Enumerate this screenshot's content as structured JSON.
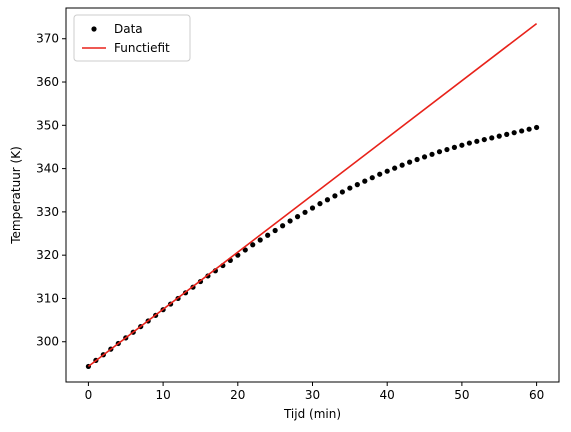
{
  "chart_data": {
    "type": "scatter",
    "title": "",
    "xlabel": "Tijd (min)",
    "ylabel": "Temperatuur (K)",
    "xlim": [
      -3,
      63
    ],
    "ylim": [
      290.7,
      377.1
    ],
    "xticks": [
      0,
      10,
      20,
      30,
      40,
      50,
      60
    ],
    "yticks": [
      300,
      310,
      320,
      330,
      340,
      350,
      360,
      370
    ],
    "grid": false,
    "legend": {
      "placement": "top-left"
    },
    "series": [
      {
        "name": "Data",
        "kind": "points",
        "color": "#000000",
        "x": [
          0,
          1,
          2,
          3,
          4,
          5,
          6,
          7,
          8,
          9,
          10,
          11,
          12,
          13,
          14,
          15,
          16,
          17,
          18,
          19,
          20,
          21,
          22,
          23,
          24,
          25,
          26,
          27,
          28,
          29,
          30,
          31,
          32,
          33,
          34,
          35,
          36,
          37,
          38,
          39,
          40,
          41,
          42,
          43,
          44,
          45,
          46,
          47,
          48,
          49,
          50,
          51,
          52,
          53,
          54,
          55,
          56,
          57,
          58,
          59,
          60
        ],
        "y": [
          294.3,
          295.7,
          297.0,
          298.3,
          299.6,
          300.9,
          302.2,
          303.5,
          304.8,
          306.1,
          307.4,
          308.7,
          310.0,
          311.3,
          312.6,
          313.9,
          315.2,
          316.4,
          317.6,
          318.8,
          320.0,
          321.2,
          322.4,
          323.5,
          324.6,
          325.7,
          326.8,
          327.9,
          328.9,
          329.9,
          330.9,
          331.9,
          332.8,
          333.7,
          334.6,
          335.5,
          336.3,
          337.1,
          337.9,
          338.7,
          339.4,
          340.1,
          340.8,
          341.5,
          342.1,
          342.7,
          343.3,
          343.9,
          344.4,
          344.9,
          345.4,
          345.9,
          346.3,
          346.7,
          347.1,
          347.5,
          347.9,
          348.3,
          348.7,
          349.1,
          349.5
        ]
      },
      {
        "name": "Functiefit",
        "kind": "line",
        "color": "#e8221a",
        "x": [
          0,
          60
        ],
        "y": [
          294.3,
          373.5
        ]
      }
    ]
  }
}
